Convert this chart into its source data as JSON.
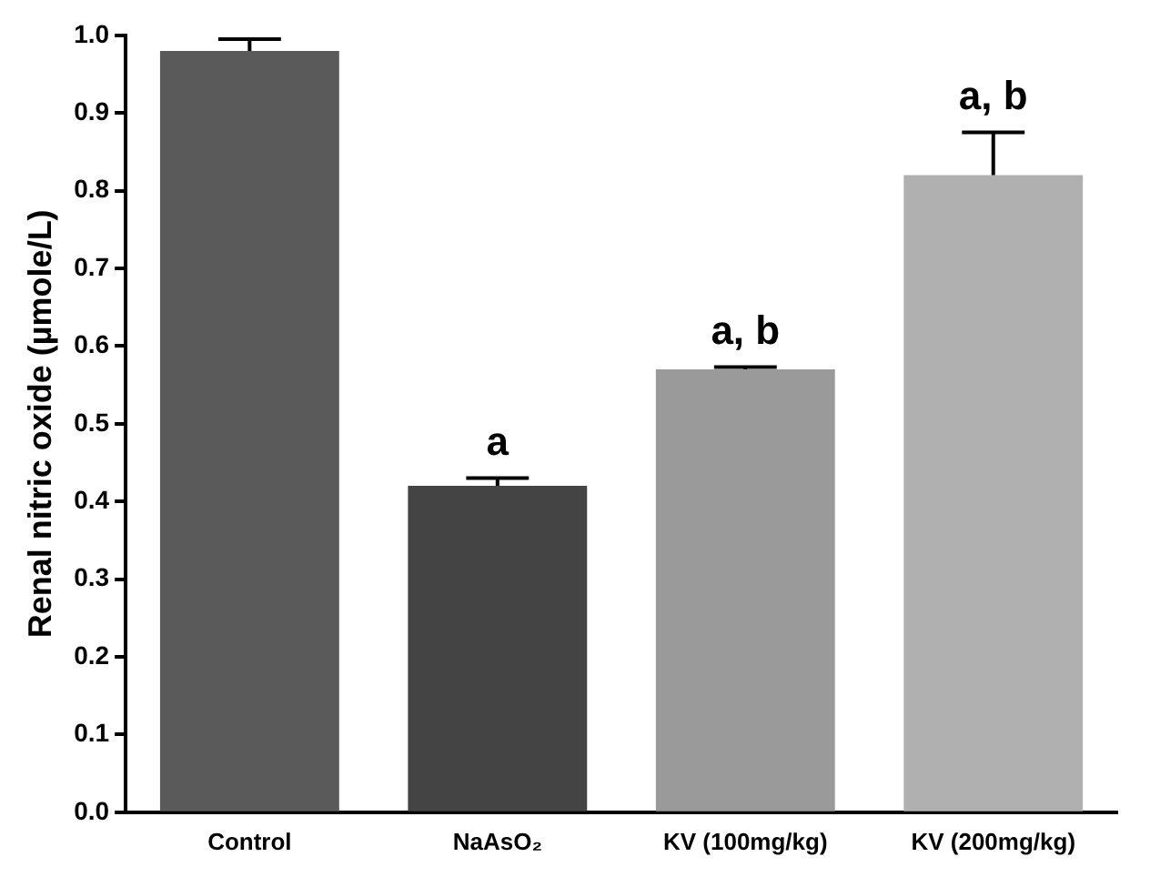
{
  "chart_data": {
    "type": "bar",
    "ylabel": "Renal nitric oxide (µmole/L)",
    "categories": [
      "Control",
      "NaAsO₂",
      "KV (100mg/kg)",
      "KV (200mg/kg)"
    ],
    "values": [
      0.98,
      0.42,
      0.57,
      0.82
    ],
    "errors": [
      [
        0.98,
        0.995
      ],
      [
        0.42,
        0.43
      ],
      [
        0.57,
        0.573
      ],
      [
        0.82,
        0.875
      ]
    ],
    "colors": [
      "#5a5a5a",
      "#444444",
      "#9a9a9a",
      "#b0b0b0"
    ],
    "ylim": [
      0,
      1
    ],
    "yticks": [
      {
        "value": 0,
        "label": "0.0"
      },
      {
        "value": 0.1,
        "label": "0.1"
      },
      {
        "value": 0.2,
        "label": "0.2"
      },
      {
        "value": 0.3,
        "label": "0.3"
      },
      {
        "value": 0.4,
        "label": "0.4"
      },
      {
        "value": 0.5,
        "label": "0.5"
      },
      {
        "value": 0.6,
        "label": "0.6"
      },
      {
        "value": 0.7,
        "label": "0.7"
      },
      {
        "value": 0.8,
        "label": "0.8"
      },
      {
        "value": 0.9,
        "label": "0.9"
      },
      {
        "value": 1,
        "label": "1.0"
      }
    ],
    "grid": false,
    "legend": false,
    "annotations": [
      {
        "text": "a",
        "x": "NaAsO₂",
        "y": 0.43
      },
      {
        "text": "a, b",
        "x": "KV (100mg/kg)",
        "y": 0.573
      },
      {
        "text": "a, b",
        "x": "KV (200mg/kg)",
        "y": 0.875
      }
    ]
  }
}
